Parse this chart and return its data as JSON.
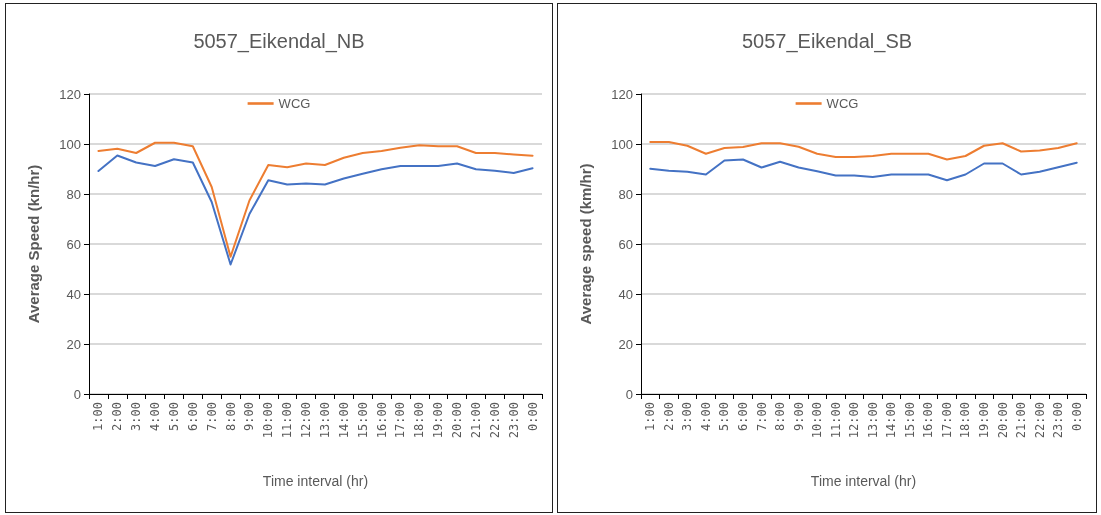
{
  "chart_data": [
    {
      "type": "line",
      "title": "5057_Eikendal_NB",
      "xlabel": "Time interval (hr)",
      "ylabel": "Average Speed (kn/hr)",
      "categories": [
        "1:00",
        "2:00",
        "3:00",
        "4:00",
        "5:00",
        "6:00",
        "7:00",
        "8:00",
        "9:00",
        "10:00",
        "11:00",
        "12:00",
        "13:00",
        "14:00",
        "15:00",
        "16:00",
        "17:00",
        "18:00",
        "19:00",
        "20:00",
        "21:00",
        "22:00",
        "23:00",
        "0:00"
      ],
      "series": [
        {
          "color": "#4472c4",
          "values": [
            89.2,
            95.4,
            92.6,
            91.2,
            93.9,
            92.6,
            76.8,
            51.8,
            72.0,
            85.5,
            83.8,
            84.2,
            83.8,
            86.2,
            88.1,
            89.9,
            91.2,
            91.2,
            91.2,
            92.2,
            89.9,
            89.3,
            88.4,
            90.3
          ]
        },
        {
          "name": "WCG",
          "color": "#ed7d31",
          "values": [
            97.2,
            98.1,
            96.4,
            100.5,
            100.5,
            99.1,
            82.8,
            54.9,
            77.4,
            91.6,
            90.7,
            92.2,
            91.6,
            94.5,
            96.4,
            97.2,
            98.5,
            99.5,
            99.1,
            99.1,
            96.4,
            96.4,
            95.8,
            95.3
          ]
        }
      ],
      "ylim": [
        0,
        120
      ],
      "yticks": [
        0,
        20,
        40,
        60,
        80,
        100,
        120
      ],
      "grid": "y",
      "legend": "top",
      "marker": "none",
      "line_style": "solid"
    },
    {
      "type": "line",
      "title": "5057_Eikendal_SB",
      "xlabel": "Time interval (hr)",
      "ylabel": "Average speed (km/hr)",
      "categories": [
        "1:00",
        "2:00",
        "3:00",
        "4:00",
        "5:00",
        "6:00",
        "7:00",
        "8:00",
        "9:00",
        "10:00",
        "11:00",
        "12:00",
        "13:00",
        "14:00",
        "15:00",
        "16:00",
        "17:00",
        "18:00",
        "19:00",
        "20:00",
        "21:00",
        "22:00",
        "23:00",
        "0:00"
      ],
      "series": [
        {
          "color": "#4472c4",
          "values": [
            90.1,
            89.3,
            88.9,
            87.8,
            93.4,
            93.8,
            90.6,
            92.9,
            90.6,
            89.1,
            87.4,
            87.4,
            86.8,
            87.8,
            87.8,
            87.8,
            85.5,
            87.8,
            92.2,
            92.2,
            87.8,
            88.9,
            90.7,
            92.5
          ]
        },
        {
          "name": "WCG",
          "color": "#ed7d31",
          "values": [
            100.8,
            100.8,
            99.3,
            96.1,
            98.4,
            98.8,
            100.3,
            100.3,
            98.9,
            96.1,
            94.8,
            94.8,
            95.2,
            96.1,
            96.1,
            96.1,
            93.8,
            95.2,
            99.3,
            100.3,
            97.0,
            97.4,
            98.4,
            100.3
          ]
        }
      ],
      "ylim": [
        0,
        120
      ],
      "yticks": [
        0,
        20,
        40,
        60,
        80,
        100,
        120
      ],
      "grid": "y",
      "legend": "top",
      "marker": "none",
      "line_style": "solid"
    }
  ]
}
